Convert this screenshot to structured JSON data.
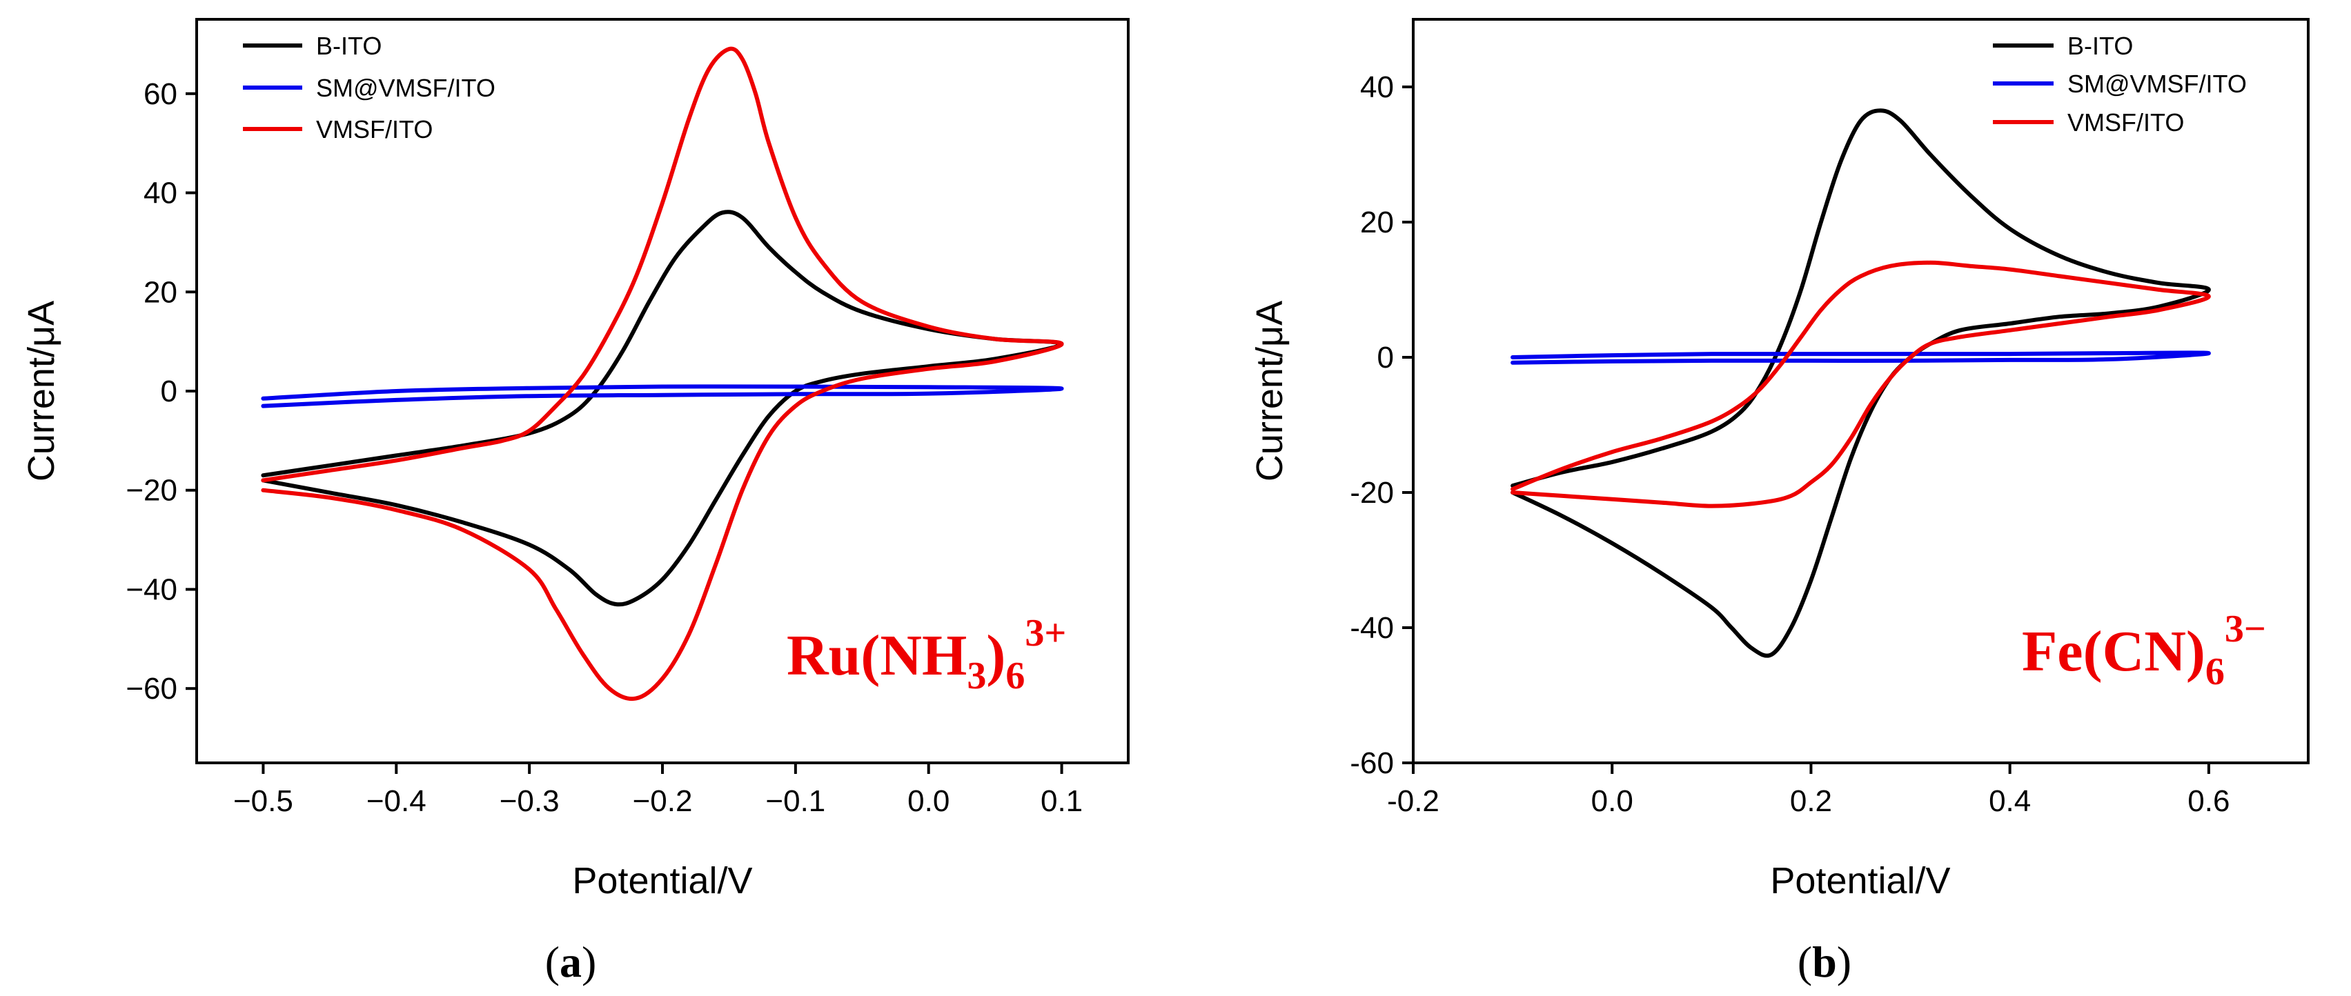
{
  "colors": {
    "b_ito": "#000000",
    "sm_vmsf_ito": "#0000ee",
    "vmsf_ito": "#ee0000",
    "species_text": "#ee0000"
  },
  "chart_data": [
    {
      "type": "line",
      "panel": "a",
      "panel_label_open": "(",
      "panel_label_letter": "a",
      "panel_label_close": ")",
      "xlabel": "Potential/V",
      "ylabel": "Current/μA",
      "xlim": [
        -0.55,
        0.15
      ],
      "ylim": [
        -75,
        75
      ],
      "xticks": [
        -0.5,
        -0.4,
        -0.3,
        -0.2,
        -0.1,
        0.0,
        0.1
      ],
      "xtick_labels": [
        "−0.5",
        "−0.4",
        "−0.3",
        "−0.2",
        "−0.1",
        "0.0",
        "0.1"
      ],
      "yticks": [
        -60,
        -40,
        -20,
        0,
        20,
        40,
        60
      ],
      "ytick_labels": [
        "−60",
        "−40",
        "−20",
        "0",
        "20",
        "40",
        "60"
      ],
      "legend_position": "top-left",
      "annotation": {
        "base": "Ru(NH",
        "sub1": "3",
        "mid": ")",
        "sub2": "6",
        "sup": "3+",
        "position": "bottom-right"
      },
      "series": [
        {
          "name": "B-ITO",
          "forward": {
            "x": [
              -0.5,
              -0.45,
              -0.4,
              -0.35,
              -0.3,
              -0.27,
              -0.25,
              -0.23,
              -0.21,
              -0.19,
              -0.17,
              -0.155,
              -0.14,
              -0.12,
              -0.1,
              -0.08,
              -0.05,
              0.0,
              0.05,
              0.1
            ],
            "y": [
              -17,
              -15,
              -13,
              -11,
              -8.5,
              -5,
              0,
              8,
              18,
              27,
              33,
              36,
              35,
              29,
              24,
              20,
              16,
              12.5,
              10.5,
              9.5
            ]
          },
          "reverse": {
            "x": [
              0.1,
              0.05,
              0.0,
              -0.05,
              -0.08,
              -0.1,
              -0.12,
              -0.14,
              -0.16,
              -0.18,
              -0.2,
              -0.22,
              -0.235,
              -0.25,
              -0.27,
              -0.3,
              -0.35,
              -0.4,
              -0.45,
              -0.5
            ],
            "y": [
              7.5,
              6.5,
              5,
              3.5,
              2,
              0,
              -5,
              -13,
              -22,
              -31,
              -38,
              -42,
              -43,
              -41,
              -36,
              -31,
              -26.5,
              -23,
              -20.5,
              -18
            ]
          }
        },
        {
          "name": "SM@VMSF/ITO",
          "forward": {
            "x": [
              -0.5,
              -0.4,
              -0.3,
              -0.2,
              -0.1,
              0.0,
              0.1
            ],
            "y": [
              -1.5,
              0,
              0.6,
              0.9,
              0.9,
              0.8,
              0.5
            ]
          },
          "reverse": {
            "x": [
              0.1,
              0.0,
              -0.1,
              -0.2,
              -0.3,
              -0.4,
              -0.5
            ],
            "y": [
              0,
              -0.5,
              -0.6,
              -0.8,
              -1,
              -1.8,
              -3
            ]
          }
        },
        {
          "name": "VMSF/ITO",
          "forward": {
            "x": [
              -0.5,
              -0.45,
              -0.4,
              -0.35,
              -0.32,
              -0.3,
              -0.28,
              -0.26,
              -0.24,
              -0.22,
              -0.2,
              -0.18,
              -0.165,
              -0.15,
              -0.14,
              -0.13,
              -0.12,
              -0.1,
              -0.08,
              -0.05,
              0.0,
              0.05,
              0.1
            ],
            "y": [
              -18,
              -16,
              -14,
              -11.5,
              -10,
              -8,
              -3,
              3,
              12,
              23,
              38,
              55,
              65,
              69,
              67,
              60,
              50,
              35,
              26,
              18,
              13,
              10.5,
              9.5
            ]
          },
          "reverse": {
            "x": [
              0.1,
              0.05,
              0.0,
              -0.05,
              -0.08,
              -0.1,
              -0.12,
              -0.14,
              -0.16,
              -0.18,
              -0.2,
              -0.22,
              -0.24,
              -0.26,
              -0.28,
              -0.3,
              -0.35,
              -0.4,
              -0.45,
              -0.5
            ],
            "y": [
              7,
              6,
              4.5,
              2.5,
              0,
              -3,
              -9,
              -20,
              -35,
              -49,
              -58,
              -62,
              -60,
              -53,
              -44,
              -36,
              -28,
              -24,
              -21.5,
              -20
            ]
          }
        }
      ]
    },
    {
      "type": "line",
      "panel": "b",
      "panel_label_open": "(",
      "panel_label_letter": "b",
      "panel_label_close": ")",
      "xlabel": "Potential/V",
      "ylabel": "Current/μA",
      "xlim": [
        -0.2,
        0.7
      ],
      "ylim": [
        -60,
        50
      ],
      "xticks": [
        -0.2,
        0.0,
        0.2,
        0.4,
        0.6
      ],
      "xtick_labels": [
        "-0.2",
        "0.0",
        "0.2",
        "0.4",
        "0.6"
      ],
      "yticks": [
        -60,
        -40,
        -20,
        0,
        20,
        40
      ],
      "ytick_labels": [
        "-60",
        "-40",
        "-20",
        "0",
        "20",
        "40"
      ],
      "legend_position": "top-right",
      "annotation": {
        "base": "Fe(CN)",
        "sub2": "6",
        "sup": "3−",
        "position": "bottom-right"
      },
      "series": [
        {
          "name": "B-ITO",
          "forward": {
            "x": [
              -0.1,
              -0.05,
              0.0,
              0.05,
              0.1,
              0.13,
              0.15,
              0.17,
              0.19,
              0.21,
              0.23,
              0.25,
              0.27,
              0.29,
              0.32,
              0.36,
              0.4,
              0.45,
              0.5,
              0.55,
              0.6
            ],
            "y": [
              -19,
              -17,
              -15.5,
              -13.5,
              -11,
              -8,
              -4,
              2,
              10,
              20,
              29,
              35,
              36.5,
              35,
              30,
              24,
              19,
              15,
              12.5,
              11,
              10
            ]
          },
          "reverse": {
            "x": [
              0.6,
              0.55,
              0.5,
              0.45,
              0.4,
              0.35,
              0.32,
              0.3,
              0.28,
              0.26,
              0.24,
              0.22,
              0.2,
              0.18,
              0.16,
              0.14,
              0.12,
              0.1,
              0.05,
              0.0,
              -0.05,
              -0.1
            ],
            "y": [
              9,
              7.5,
              6.5,
              6,
              5,
              4,
              2,
              0,
              -3,
              -8,
              -15,
              -24,
              -33,
              -40,
              -44,
              -43,
              -40,
              -37,
              -32,
              -27.5,
              -23.5,
              -20
            ]
          }
        },
        {
          "name": "SM@VMSF/ITO",
          "forward": {
            "x": [
              -0.1,
              0.0,
              0.1,
              0.2,
              0.3,
              0.4,
              0.5,
              0.6
            ],
            "y": [
              0,
              0.3,
              0.5,
              0.5,
              0.5,
              0.5,
              0.6,
              0.6
            ]
          },
          "reverse": {
            "x": [
              0.6,
              0.5,
              0.4,
              0.3,
              0.2,
              0.1,
              0.0,
              -0.1
            ],
            "y": [
              -0.2,
              -0.3,
              -0.4,
              -0.5,
              -0.5,
              -0.5,
              -0.6,
              -0.8
            ]
          }
        },
        {
          "name": "VMSF/ITO",
          "forward": {
            "x": [
              -0.1,
              -0.05,
              0.0,
              0.05,
              0.1,
              0.13,
              0.15,
              0.17,
              0.19,
              0.21,
              0.23,
              0.25,
              0.28,
              0.32,
              0.36,
              0.4,
              0.45,
              0.5,
              0.55,
              0.6
            ],
            "y": [
              -19.5,
              -16.5,
              -14,
              -12,
              -9.5,
              -7,
              -4.5,
              -1,
              3,
              7,
              10,
              12,
              13.5,
              14,
              13.5,
              13,
              12,
              11,
              10,
              9
            ]
          },
          "reverse": {
            "x": [
              0.6,
              0.55,
              0.5,
              0.45,
              0.4,
              0.35,
              0.32,
              0.3,
              0.28,
              0.26,
              0.24,
              0.22,
              0.2,
              0.18,
              0.15,
              0.1,
              0.05,
              0.0,
              -0.05,
              -0.1
            ],
            "y": [
              8.5,
              7,
              6,
              5,
              4,
              3,
              2,
              0,
              -3,
              -7,
              -12,
              -16,
              -18.5,
              -20.5,
              -21.5,
              -22,
              -21.5,
              -21,
              -20.5,
              -20
            ]
          }
        }
      ]
    }
  ]
}
